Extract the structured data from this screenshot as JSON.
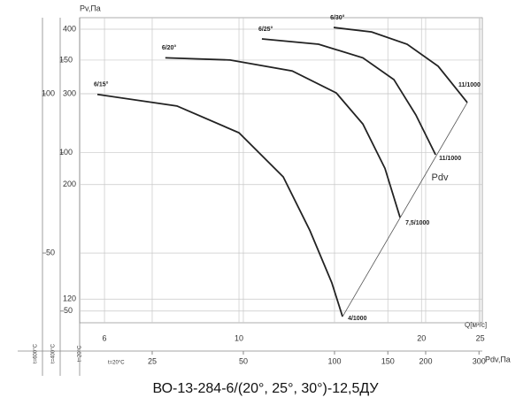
{
  "chart_data": {
    "type": "line",
    "title": "ВО-13-284-6/(20°, 25°, 30°)-12,5ДУ",
    "x_label": "Q[м³/с]",
    "y_label": "Pv,Па",
    "xscale": "log",
    "yscale": "log",
    "xlim": [
      5.46,
      25.2
    ],
    "xticks": [
      6,
      10,
      20,
      25
    ],
    "ylim": [
      108,
      421
    ],
    "yticks": [
      400,
      300,
      200,
      120
    ],
    "y_temp_label": "t=20°C",
    "grid": true,
    "extra_y_axes": [
      {
        "label": "t=400°C",
        "ylim": [
          47.5,
          180.6
        ],
        "yticks": [
          150,
          100,
          50
        ]
      },
      {
        "label": "t=600°C",
        "ylim": [
          36.9,
          139.3
        ],
        "yticks": [
          100,
          50
        ]
      }
    ],
    "pdv_axis": {
      "label": "Pdv,Па",
      "temp_label": "t=20°C",
      "xlim": [
        14.4,
        307.7
      ],
      "xticks": [
        25,
        50,
        100,
        150,
        200,
        300
      ]
    },
    "series": [
      {
        "name": "6/15°",
        "end_label": "4/1000",
        "color": "#222222",
        "x": [
          5.84,
          7.9,
          10,
          11.83,
          13.09,
          14.23,
          14.82
        ],
        "values": [
          299,
          284,
          252,
          207,
          163,
          129,
          111
        ]
      },
      {
        "name": "6/20°",
        "end_label": "7,5/1000",
        "color": "#222222",
        "x": [
          7.56,
          9.67,
          12.24,
          14.47,
          16.01,
          17.41,
          18.44
        ],
        "values": [
          352,
          348.6,
          332,
          301,
          262,
          215,
          172.7
        ]
      },
      {
        "name": "6/25°",
        "end_label": "11/1000",
        "color": "#222222",
        "x": [
          10.91,
          13.53,
          16.01,
          18.01,
          19.58,
          21.1
        ],
        "values": [
          383,
          374,
          352,
          319.5,
          272.8,
          228.5
        ]
      },
      {
        "name": "6/30°",
        "end_label": "11/1000",
        "color": "#222222",
        "x": [
          14.33,
          16.55,
          18.94,
          21.31,
          23.8
        ],
        "values": [
          403,
          395,
          374,
          339,
          288.4
        ]
      }
    ],
    "pdv_line": {
      "name": "Pdv",
      "color": "#555555",
      "x": [
        14.82,
        23.8
      ],
      "values": [
        111,
        288.4
      ]
    }
  }
}
